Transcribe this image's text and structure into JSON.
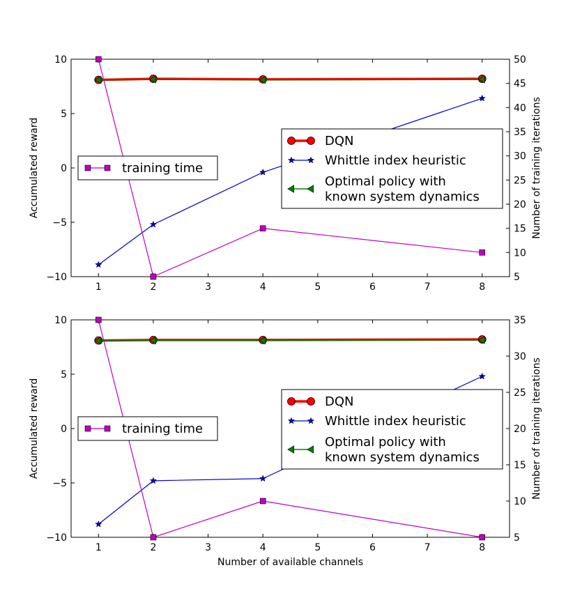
{
  "colors": {
    "dqn": "#ff0000",
    "dqn_line": "#ff0000",
    "whittle": "#0000cc",
    "optimal": "#008000",
    "training": "#bf00bf",
    "axis": "#000000",
    "background": "#ffffff"
  },
  "chart_data": [
    {
      "type": "line",
      "x": [
        1,
        2,
        4,
        8
      ],
      "xlim": [
        0.5,
        8.5
      ],
      "xticks": [
        "1",
        "2",
        "3",
        "4",
        "5",
        "6",
        "7",
        "8"
      ],
      "xlabel": "",
      "ylabel": "Accumulated reward",
      "ylim": [
        -10,
        10
      ],
      "yticks": [
        "10",
        "5",
        "0",
        "−5",
        "−10"
      ],
      "y2label": "Number of training iterations",
      "y2lim": [
        5,
        50
      ],
      "y2ticks": [
        "50",
        "45",
        "40",
        "35",
        "30",
        "25",
        "20",
        "15",
        "10",
        "5"
      ],
      "series": [
        {
          "name": "DQN",
          "axis": "left",
          "values": [
            8.1,
            8.2,
            8.15,
            8.2
          ]
        },
        {
          "name": "Whittle index heuristic",
          "axis": "left",
          "values": [
            -8.9,
            -5.2,
            -0.4,
            6.4
          ]
        },
        {
          "name": "Optimal policy with known system dynamics",
          "axis": "left",
          "values": [
            8.1,
            8.15,
            8.1,
            8.15
          ]
        },
        {
          "name": "training time",
          "axis": "right",
          "values": [
            50,
            5,
            15,
            10
          ]
        }
      ],
      "legend_right": {
        "placement": "center-right",
        "entries": [
          "DQN",
          "Whittle index heuristic",
          "Optimal policy with",
          "known system dynamics"
        ]
      },
      "legend_left": {
        "placement": "center-left",
        "entries": [
          "training time"
        ]
      },
      "grid": false
    },
    {
      "type": "line",
      "x": [
        1,
        2,
        4,
        8
      ],
      "xlim": [
        0.5,
        8.5
      ],
      "xticks": [
        "1",
        "2",
        "3",
        "4",
        "5",
        "6",
        "7",
        "8"
      ],
      "xlabel": "Number of available channels",
      "ylabel": "Accumulated reward",
      "ylim": [
        -10,
        10
      ],
      "yticks": [
        "10",
        "5",
        "0",
        "−5",
        "−10"
      ],
      "y2label": "Number of training iterations",
      "y2lim": [
        5,
        35
      ],
      "y2ticks": [
        "35",
        "30",
        "25",
        "20",
        "15",
        "10",
        "5"
      ],
      "series": [
        {
          "name": "DQN",
          "axis": "left",
          "values": [
            8.1,
            8.15,
            8.15,
            8.2
          ]
        },
        {
          "name": "Whittle index heuristic",
          "axis": "left",
          "values": [
            -8.8,
            -4.8,
            -4.6,
            4.8
          ]
        },
        {
          "name": "Optimal policy with known system dynamics",
          "axis": "left",
          "values": [
            8.1,
            8.1,
            8.1,
            8.15
          ]
        },
        {
          "name": "training time",
          "axis": "right",
          "values": [
            35,
            5,
            10,
            5
          ]
        }
      ],
      "legend_right": {
        "placement": "center-right",
        "entries": [
          "DQN",
          "Whittle index heuristic",
          "Optimal policy with",
          "known system dynamics"
        ]
      },
      "legend_left": {
        "placement": "center-left",
        "entries": [
          "training time"
        ]
      },
      "grid": false
    }
  ]
}
